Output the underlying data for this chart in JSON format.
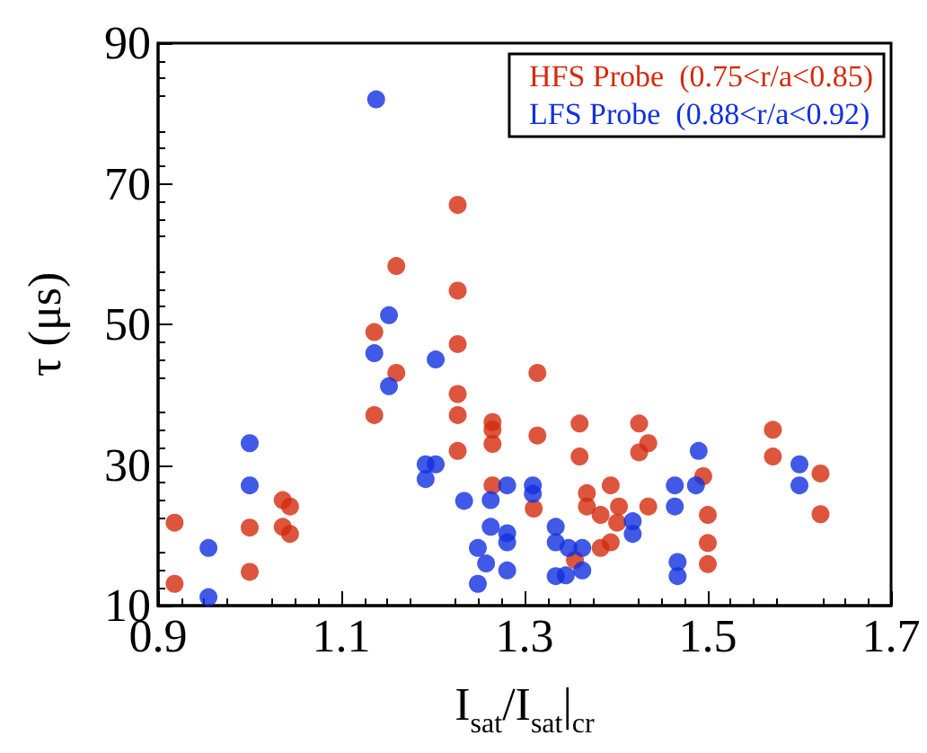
{
  "chart_data": {
    "type": "scatter",
    "xlabel": "I$_{sat}$/I$_{sat}$|$_{cr}$",
    "ylabel": "τ (μs)",
    "xlim": [
      0.9,
      1.7
    ],
    "xticks": [
      0.9,
      1.1,
      1.3,
      1.5,
      1.7
    ],
    "ylim": [
      10,
      90
    ],
    "yticks": [
      10,
      30,
      50,
      70,
      90
    ],
    "grid": false,
    "legend": "top right",
    "marker": "circle",
    "series": [
      {
        "name": "HFS Probe  (0.75<r/a<0.85)",
        "color": "#d42a0c",
        "x": [
          0.918,
          0.918,
          1.0,
          1.0,
          1.036,
          1.044,
          1.036,
          1.044,
          1.136,
          1.136,
          1.16,
          1.16,
          1.227,
          1.227,
          1.227,
          1.227,
          1.227,
          1.227,
          1.265,
          1.265,
          1.265,
          1.265,
          1.314,
          1.314,
          1.31,
          1.36,
          1.36,
          1.355,
          1.368,
          1.368,
          1.383,
          1.394,
          1.403,
          1.401,
          1.383,
          1.394,
          1.425,
          1.435,
          1.425,
          1.435,
          1.495,
          1.5,
          1.5,
          1.5,
          1.571,
          1.571,
          1.623,
          1.623
        ],
        "values": [
          21.8,
          13.1,
          21.1,
          14.8,
          25.0,
          24.1,
          21.2,
          20.2,
          48.9,
          37.1,
          58.3,
          43.1,
          67.0,
          54.8,
          47.2,
          40.1,
          37.1,
          32.0,
          36.1,
          35.0,
          33.0,
          27.1,
          43.1,
          34.2,
          23.8,
          35.9,
          31.2,
          16.5,
          26.0,
          24.1,
          22.9,
          27.1,
          24.1,
          21.8,
          18.2,
          19.0,
          35.9,
          33.1,
          31.8,
          24.1,
          28.4,
          22.9,
          18.9,
          15.9,
          35.0,
          31.2,
          28.8,
          23.0
        ]
      },
      {
        "name": "LFS Probe  (0.88<r/a<0.92)",
        "color": "#1030e0",
        "x": [
          1.138,
          1.152,
          1.136,
          1.152,
          1.203,
          1.192,
          1.203,
          1.192,
          1.0,
          1.0,
          0.955,
          0.955,
          1.234,
          1.249,
          1.249,
          1.258,
          1.263,
          1.263,
          1.281,
          1.281,
          1.281,
          1.281,
          1.309,
          1.309,
          1.334,
          1.334,
          1.334,
          1.348,
          1.363,
          1.345,
          1.363,
          1.418,
          1.418,
          1.464,
          1.464,
          1.467,
          1.467,
          1.49,
          1.487,
          1.6,
          1.6
        ],
        "values": [
          82.0,
          51.3,
          45.9,
          41.2,
          45.0,
          30.1,
          30.1,
          28.0,
          33.1,
          27.1,
          18.2,
          11.2,
          24.9,
          18.2,
          13.1,
          16.0,
          25.0,
          21.2,
          27.1,
          20.3,
          19.0,
          15.0,
          27.1,
          25.9,
          21.2,
          19.0,
          14.2,
          18.2,
          18.2,
          14.3,
          15.0,
          22.0,
          20.2,
          27.1,
          24.1,
          16.2,
          14.2,
          32.0,
          27.1,
          30.1,
          27.1
        ]
      }
    ]
  }
}
